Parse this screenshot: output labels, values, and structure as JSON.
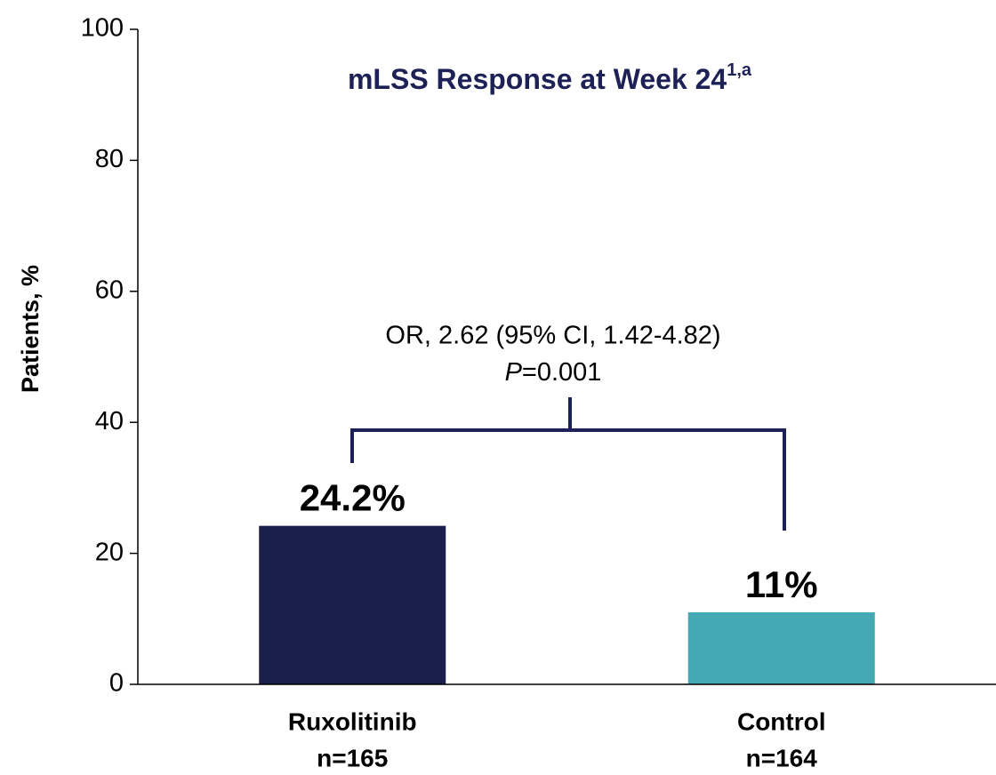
{
  "chart_data": {
    "type": "bar",
    "title": "mLSS Response at Week 24",
    "title_superscript": "1,a",
    "y_label": "Patients, %",
    "categories": [
      "Ruxolitinib",
      "Control"
    ],
    "category_sublabels": [
      "n=165",
      "n=164"
    ],
    "values": [
      24.2,
      11
    ],
    "value_labels": [
      "24.2%",
      "11%"
    ],
    "colors": [
      "#1b1f4b",
      "#45a9b3"
    ],
    "annotation": {
      "line1": "OR, 2.62 (95% CI, 1.42-4.82)",
      "p_symbol": "P",
      "p_text": "=0.001"
    },
    "ylim": [
      0,
      100
    ],
    "yticks": [
      0,
      20,
      40,
      60,
      80,
      100
    ],
    "grid": false
  }
}
